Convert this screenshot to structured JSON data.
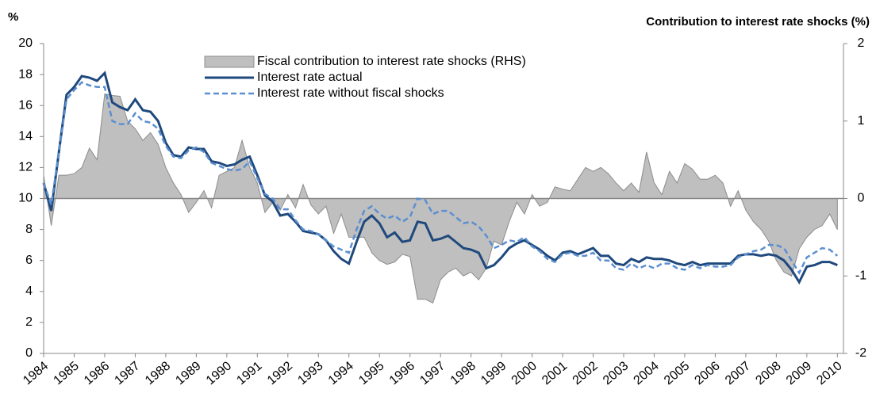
{
  "chart_data": {
    "type": "line",
    "y_label": "%",
    "y2_label": "Contribution to interest rate shocks (%)",
    "x": [
      1984,
      1984.25,
      1984.5,
      1984.75,
      1985,
      1985.25,
      1985.5,
      1985.75,
      1986,
      1986.25,
      1986.5,
      1986.75,
      1987,
      1987.25,
      1987.5,
      1987.75,
      1988,
      1988.25,
      1988.5,
      1988.75,
      1989,
      1989.25,
      1989.5,
      1989.75,
      1990,
      1990.25,
      1990.5,
      1990.75,
      1991,
      1991.25,
      1991.5,
      1991.75,
      1992,
      1992.25,
      1992.5,
      1992.75,
      1993,
      1993.25,
      1993.5,
      1993.75,
      1994,
      1994.25,
      1994.5,
      1994.75,
      1995,
      1995.25,
      1995.5,
      1995.75,
      1996,
      1996.25,
      1996.5,
      1996.75,
      1997,
      1997.25,
      1997.5,
      1997.75,
      1998,
      1998.25,
      1998.5,
      1998.75,
      1999,
      1999.25,
      1999.5,
      1999.75,
      2000,
      2000.25,
      2000.5,
      2000.75,
      2001,
      2001.25,
      2001.5,
      2001.75,
      2002,
      2002.25,
      2002.5,
      2002.75,
      2003,
      2003.25,
      2003.5,
      2003.75,
      2004,
      2004.25,
      2004.5,
      2004.75,
      2005,
      2005.25,
      2005.5,
      2005.75,
      2006,
      2006.25,
      2006.5,
      2006.75,
      2007,
      2007.25,
      2007.5,
      2007.75,
      2008,
      2008.25,
      2008.5,
      2008.75,
      2009,
      2009.25,
      2009.5,
      2009.75,
      2010
    ],
    "xlim": [
      1984,
      2010.2
    ],
    "xticks": [
      1984,
      1985,
      1986,
      1987,
      1988,
      1989,
      1990,
      1991,
      1992,
      1993,
      1994,
      1995,
      1996,
      1997,
      1998,
      1999,
      2000,
      2001,
      2002,
      2003,
      2004,
      2005,
      2006,
      2007,
      2008,
      2009,
      2010
    ],
    "ylim": [
      0,
      20
    ],
    "yticks": [
      0,
      2,
      4,
      6,
      8,
      10,
      12,
      14,
      16,
      18,
      20
    ],
    "y2lim": [
      -2,
      2
    ],
    "y2ticks": [
      -2,
      -1,
      0,
      1,
      2
    ],
    "series": [
      {
        "name": "Fiscal contribution to interest rate shocks (RHS)",
        "type": "area",
        "axis": "y2",
        "color": "#BFBFBF",
        "values": [
          0.3,
          -0.35,
          0.3,
          0.3,
          0.32,
          0.4,
          0.65,
          0.5,
          1.35,
          1.33,
          1.32,
          1.0,
          0.9,
          0.75,
          0.85,
          0.7,
          0.4,
          0.2,
          0.05,
          -0.18,
          -0.05,
          0.1,
          -0.12,
          0.3,
          0.35,
          0.4,
          0.75,
          0.4,
          0.2,
          -0.18,
          -0.05,
          -0.15,
          0.05,
          -0.12,
          0.18,
          -0.08,
          -0.2,
          -0.1,
          -0.45,
          -0.2,
          -0.5,
          -0.5,
          -0.5,
          -0.7,
          -0.8,
          -0.85,
          -0.82,
          -0.72,
          -0.75,
          -1.3,
          -1.3,
          -1.35,
          -1.05,
          -0.95,
          -0.9,
          -1.0,
          -0.95,
          -1.05,
          -0.9,
          -0.55,
          -0.6,
          -0.3,
          -0.05,
          -0.2,
          0.05,
          -0.1,
          -0.05,
          0.15,
          0.12,
          0.1,
          0.25,
          0.4,
          0.35,
          0.4,
          0.32,
          0.2,
          0.1,
          0.2,
          0.08,
          0.6,
          0.2,
          0.05,
          0.35,
          0.2,
          0.45,
          0.38,
          0.25,
          0.25,
          0.3,
          0.2,
          -0.1,
          0.1,
          -0.15,
          -0.3,
          -0.4,
          -0.55,
          -0.8,
          -0.95,
          -1.0,
          -0.65,
          -0.5,
          -0.4,
          -0.35,
          -0.2,
          -0.4
        ]
      },
      {
        "name": "Interest rate actual",
        "type": "line",
        "color": "#1F497D",
        "values": [
          11.0,
          9.2,
          13,
          16.7,
          17.2,
          17.9,
          17.8,
          17.6,
          18.1,
          16.2,
          15.9,
          15.7,
          16.4,
          15.7,
          15.6,
          15.0,
          13.6,
          12.8,
          12.7,
          13.3,
          13.2,
          13.2,
          12.4,
          12.3,
          12.1,
          12.2,
          12.5,
          12.7,
          11.5,
          10.2,
          9.8,
          8.9,
          9.0,
          8.5,
          7.9,
          7.8,
          7.7,
          7.3,
          6.6,
          6.1,
          5.8,
          7.2,
          8.5,
          8.9,
          8.4,
          7.5,
          7.8,
          7.2,
          7.3,
          8.5,
          8.4,
          7.3,
          7.4,
          7.6,
          7.2,
          6.8,
          6.7,
          6.5,
          5.5,
          5.7,
          6.2,
          6.8,
          7.1,
          7.3,
          7.0,
          6.7,
          6.3,
          6.0,
          6.5,
          6.6,
          6.4,
          6.6,
          6.8,
          6.3,
          6.3,
          5.8,
          5.7,
          6.1,
          5.9,
          6.2,
          6.1,
          6.1,
          6.0,
          5.8,
          5.7,
          5.9,
          5.7,
          5.8,
          5.8,
          5.8,
          5.8,
          6.3,
          6.4,
          6.4,
          6.3,
          6.4,
          6.3,
          6.0,
          5.4,
          4.6,
          5.6,
          5.7,
          5.9,
          5.9,
          5.7
        ]
      },
      {
        "name": "Interest rate without fiscal shocks",
        "type": "line",
        "dashed": true,
        "color": "#5B8FD0",
        "values": [
          11.0,
          9.6,
          13,
          16.4,
          17.0,
          17.5,
          17.3,
          17.2,
          17.2,
          15.0,
          14.8,
          14.8,
          15.5,
          15.0,
          14.9,
          14.5,
          13.4,
          12.7,
          12.6,
          13.1,
          13.3,
          13.0,
          12.3,
          12.1,
          11.9,
          11.8,
          11.9,
          12.4,
          11.3,
          10.3,
          10.0,
          9.3,
          9.3,
          8.6,
          8.0,
          7.9,
          7.7,
          7.3,
          6.9,
          6.7,
          6.5,
          8.0,
          9.2,
          9.5,
          9.0,
          8.7,
          8.9,
          8.5,
          8.8,
          10.0,
          9.9,
          9.0,
          9.2,
          9.2,
          8.8,
          8.4,
          8.5,
          8.2,
          7.6,
          6.8,
          7.0,
          7.3,
          7.2,
          7.5,
          6.9,
          6.6,
          6.1,
          5.9,
          6.4,
          6.5,
          6.3,
          6.3,
          6.5,
          6.0,
          6.0,
          5.5,
          5.4,
          5.8,
          5.5,
          5.7,
          5.5,
          5.8,
          5.8,
          5.5,
          5.4,
          5.7,
          5.5,
          5.7,
          5.6,
          5.6,
          5.7,
          6.2,
          6.4,
          6.6,
          6.7,
          7.0,
          7.0,
          6.8,
          6.0,
          5.2,
          6.2,
          6.5,
          6.8,
          6.7,
          6.3
        ]
      }
    ]
  }
}
